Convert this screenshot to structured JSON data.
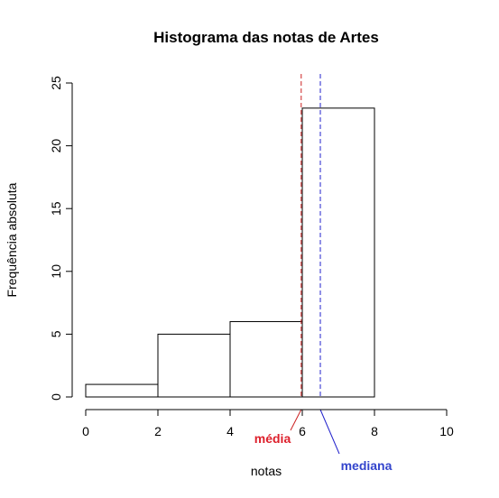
{
  "chart_data": {
    "type": "bar",
    "title": "Histograma das notas de Artes",
    "xlabel": "notas",
    "ylabel": "Frequência absoluta",
    "bins": [
      {
        "from": 0,
        "to": 2,
        "count": 1
      },
      {
        "from": 2,
        "to": 4,
        "count": 5
      },
      {
        "from": 4,
        "to": 6,
        "count": 6
      },
      {
        "from": 6,
        "to": 8,
        "count": 23
      }
    ],
    "xlim": [
      0,
      10
    ],
    "ylim": [
      0,
      25
    ],
    "xticks": [
      0,
      2,
      4,
      6,
      8,
      10
    ],
    "yticks": [
      0,
      5,
      10,
      15,
      20,
      25
    ],
    "grid": false,
    "reference_lines": [
      {
        "name": "média",
        "value": 5.97,
        "color": "#cc2222",
        "label_color": "#dd1f2b",
        "style": "dashed"
      },
      {
        "name": "mediana",
        "value": 6.5,
        "color": "#2222cc",
        "label_color": "#3344cc",
        "style": "dashed"
      }
    ]
  }
}
